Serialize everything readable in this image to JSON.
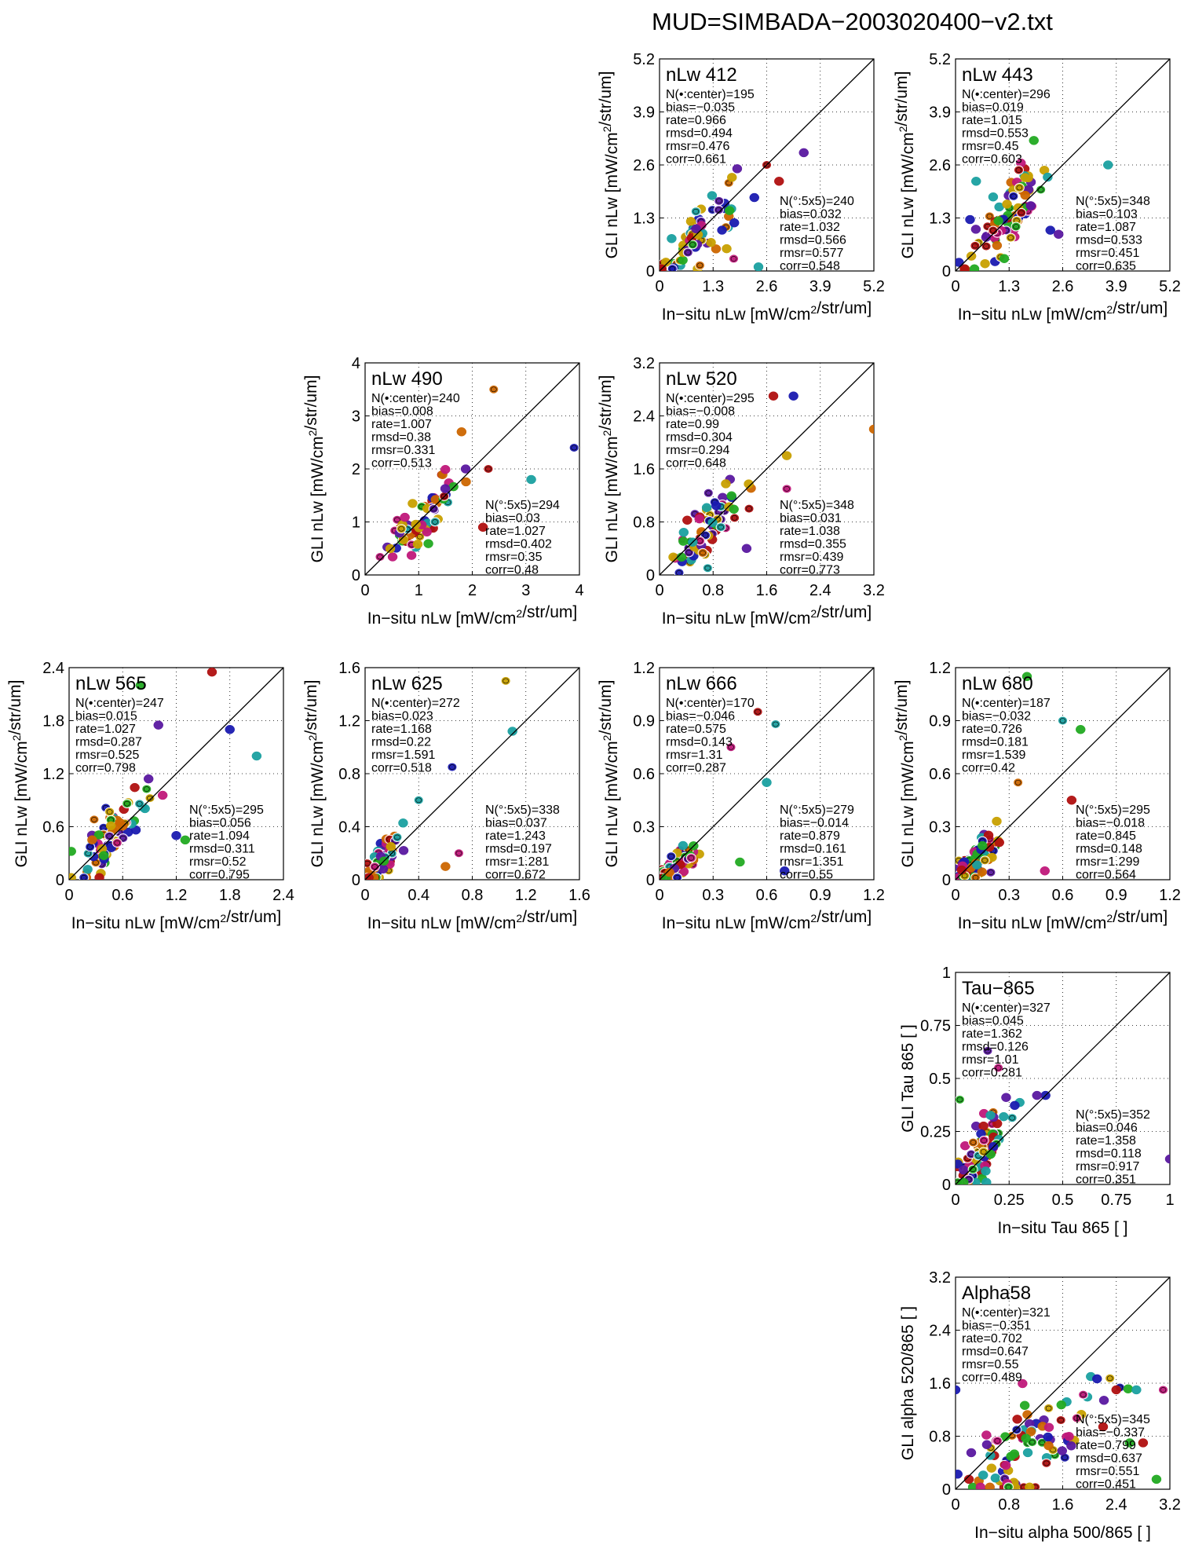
{
  "title": "MUD=SIMBADA−2003020400−v2.txt",
  "series_colors": [
    "#1a1ab0",
    "#1aa0a0",
    "#22aa22",
    "#c8a000",
    "#cc6600",
    "#b01010",
    "#c0187a",
    "#5a18a0"
  ],
  "chart_data": [
    {
      "type": "scatter",
      "panel_label": "nLw 412",
      "xlabel": "In−situ nLw [mW/cm²/str/um]",
      "ylabel": "GLI nLw [mW/cm²/str/um]",
      "xlim": [
        0,
        5.2
      ],
      "ylim": [
        0,
        5.2
      ],
      "xticks": [
        "0",
        "1.3",
        "2.6",
        "3.9",
        "5.2"
      ],
      "yticks": [
        "0",
        "1.3",
        "2.6",
        "3.9",
        "5.2"
      ],
      "grid": true,
      "identity_line": true,
      "stats_center": [
        "N(•:center)=195",
        "bias=−0.035",
        "rate=0.966",
        "rmsd=0.494",
        "rmsr=0.476",
        "corr=0.661"
      ],
      "stats_box": [
        "N(°:5x5)=240",
        "bias=0.032",
        "rate=1.032",
        "rmsd=0.566",
        "rmsr=0.577",
        "corr=0.548"
      ],
      "cluster": {
        "cx": 0.9,
        "cy": 0.9,
        "sx": 0.5,
        "sy": 0.5,
        "n": 70
      },
      "outliers": [
        [
          3.5,
          2.9
        ],
        [
          2.6,
          2.6
        ],
        [
          2.3,
          1.8
        ],
        [
          2.9,
          2.2
        ],
        [
          1.8,
          0.3
        ],
        [
          2.4,
          0.1
        ]
      ]
    },
    {
      "type": "scatter",
      "panel_label": "nLw 443",
      "xlabel": "In−situ nLw [mW/cm²/str/um]",
      "ylabel": "GLI nLw [mW/cm²/str/um]",
      "xlim": [
        0,
        5.2
      ],
      "ylim": [
        0,
        5.2
      ],
      "xticks": [
        "0",
        "1.3",
        "2.6",
        "3.9",
        "5.2"
      ],
      "yticks": [
        "0",
        "1.3",
        "2.6",
        "3.9",
        "5.2"
      ],
      "grid": true,
      "identity_line": true,
      "stats_center": [
        "N(•:center)=296",
        "bias=0.019",
        "rate=1.015",
        "rmsd=0.553",
        "rmsr=0.45",
        "corr=0.603"
      ],
      "stats_box": [
        "N(°:5x5)=348",
        "bias=0.103",
        "rate=1.087",
        "rmsd=0.533",
        "rmsr=0.451",
        "corr=0.635"
      ],
      "cluster": {
        "cx": 1.3,
        "cy": 1.4,
        "sx": 0.5,
        "sy": 0.5,
        "n": 80
      },
      "outliers": [
        [
          3.7,
          2.6
        ],
        [
          2.3,
          1.0
        ],
        [
          2.5,
          0.9
        ],
        [
          1.9,
          3.2
        ],
        [
          0.5,
          2.2
        ]
      ]
    },
    {
      "type": "scatter",
      "panel_label": "nLw 490",
      "xlabel": "In−situ nLw [mW/cm²/str/um]",
      "ylabel": "GLI nLw [mW/cm²/str/um]",
      "xlim": [
        0,
        4
      ],
      "ylim": [
        0,
        4
      ],
      "xticks": [
        "0",
        "1",
        "2",
        "3",
        "4"
      ],
      "yticks": [
        "0",
        "1",
        "2",
        "3",
        "4"
      ],
      "grid": true,
      "identity_line": true,
      "stats_center": [
        "N(•:center)=240",
        "bias=0.008",
        "rate=1.007",
        "rmsd=0.38",
        "rmsr=0.331",
        "corr=0.513"
      ],
      "stats_box": [
        "N(°:5x5)=294",
        "bias=0.03",
        "rate=1.027",
        "rmsd=0.402",
        "rmsr=0.35",
        "corr=0.48"
      ],
      "cluster": {
        "cx": 1.1,
        "cy": 1.1,
        "sx": 0.35,
        "sy": 0.3,
        "n": 75
      },
      "outliers": [
        [
          2.4,
          3.5
        ],
        [
          3.9,
          2.4
        ],
        [
          3.1,
          1.8
        ],
        [
          2.3,
          2.0
        ],
        [
          1.8,
          2.7
        ],
        [
          2.2,
          0.9
        ]
      ]
    },
    {
      "type": "scatter",
      "panel_label": "nLw 520",
      "xlabel": "In−situ nLw [mW/cm²/str/um]",
      "ylabel": "GLI nLw [mW/cm²/str/um]",
      "xlim": [
        0,
        3.2
      ],
      "ylim": [
        0,
        3.2
      ],
      "xticks": [
        "0",
        "0.8",
        "1.6",
        "2.4",
        "3.2"
      ],
      "yticks": [
        "0",
        "0.8",
        "1.6",
        "2.4",
        "3.2"
      ],
      "grid": true,
      "identity_line": true,
      "stats_center": [
        "N(•:center)=295",
        "bias=−0.008",
        "rate=0.99",
        "rmsd=0.304",
        "rmsr=0.294",
        "corr=0.648"
      ],
      "stats_box": [
        "N(°:5x5)=348",
        "bias=0.031",
        "rate=1.038",
        "rmsd=0.355",
        "rmsr=0.439",
        "corr=0.773"
      ],
      "cluster": {
        "cx": 0.75,
        "cy": 0.75,
        "sx": 0.25,
        "sy": 0.3,
        "n": 75
      },
      "outliers": [
        [
          3.2,
          2.2
        ],
        [
          1.7,
          2.7
        ],
        [
          2.0,
          2.7
        ],
        [
          1.9,
          1.8
        ],
        [
          1.9,
          1.3
        ],
        [
          1.3,
          0.4
        ]
      ]
    },
    {
      "type": "scatter",
      "panel_label": "nLw 565",
      "xlabel": "In−situ nLw [mW/cm²/str/um]",
      "ylabel": "GLI nLw [mW/cm²/str/um]",
      "xlim": [
        0,
        2.4
      ],
      "ylim": [
        0,
        2.4
      ],
      "xticks": [
        "0",
        "0.6",
        "1.2",
        "1.8",
        "2.4"
      ],
      "yticks": [
        "0",
        "0.6",
        "1.2",
        "1.8",
        "2.4"
      ],
      "grid": true,
      "identity_line": true,
      "stats_center": [
        "N(•:center)=247",
        "bias=0.015",
        "rate=1.027",
        "rmsd=0.287",
        "rmsr=0.525",
        "corr=0.798"
      ],
      "stats_box": [
        "N(°:5x5)=295",
        "bias=0.056",
        "rate=1.094",
        "rmsd=0.311",
        "rmsr=0.52",
        "corr=0.795"
      ],
      "cluster": {
        "cx": 0.45,
        "cy": 0.5,
        "sx": 0.22,
        "sy": 0.22,
        "n": 75
      },
      "outliers": [
        [
          1.6,
          2.35
        ],
        [
          0.8,
          2.2
        ],
        [
          1.0,
          1.75
        ],
        [
          2.1,
          1.4
        ],
        [
          1.8,
          1.7
        ],
        [
          1.3,
          0.45
        ],
        [
          1.2,
          0.5
        ]
      ]
    },
    {
      "type": "scatter",
      "panel_label": "nLw 625",
      "xlabel": "In−situ nLw [mW/cm²/str/um]",
      "ylabel": "GLI nLw [mW/cm²/str/um]",
      "xlim": [
        0,
        1.6
      ],
      "ylim": [
        0,
        1.6
      ],
      "xticks": [
        "0",
        "0.4",
        "0.8",
        "1.2",
        "1.6"
      ],
      "yticks": [
        "0",
        "0.4",
        "0.8",
        "1.2",
        "1.6"
      ],
      "grid": true,
      "identity_line": true,
      "stats_center": [
        "N(•:center)=272",
        "bias=0.023",
        "rate=1.168",
        "rmsd=0.22",
        "rmsr=1.591",
        "corr=0.518"
      ],
      "stats_box": [
        "N(°:5x5)=338",
        "bias=0.037",
        "rate=1.243",
        "rmsd=0.197",
        "rmsr=1.281",
        "corr=0.672"
      ],
      "cluster": {
        "cx": 0.1,
        "cy": 0.12,
        "sx": 0.08,
        "sy": 0.1,
        "n": 85
      },
      "outliers": [
        [
          1.05,
          1.5
        ],
        [
          1.1,
          1.12
        ],
        [
          0.65,
          0.85
        ],
        [
          0.4,
          0.6
        ],
        [
          0.6,
          0.1
        ],
        [
          0.7,
          0.2
        ]
      ]
    },
    {
      "type": "scatter",
      "panel_label": "nLw 666",
      "xlabel": "In−situ nLw [mW/cm²/str/um]",
      "ylabel": "GLI nLw [mW/cm²/str/um]",
      "xlim": [
        0,
        1.2
      ],
      "ylim": [
        0,
        1.2
      ],
      "xticks": [
        "0",
        "0.3",
        "0.6",
        "0.9",
        "1.2"
      ],
      "yticks": [
        "0",
        "0.3",
        "0.6",
        "0.9",
        "1.2"
      ],
      "grid": true,
      "identity_line": true,
      "stats_center": [
        "N(•:center)=170",
        "bias=−0.046",
        "rate=0.575",
        "rmsd=0.143",
        "rmsr=1.31",
        "corr=0.287"
      ],
      "stats_box": [
        "N(°:5x5)=279",
        "bias=−0.014",
        "rate=0.879",
        "rmsd=0.161",
        "rmsr=1.351",
        "corr=0.55"
      ],
      "cluster": {
        "cx": 0.1,
        "cy": 0.08,
        "sx": 0.07,
        "sy": 0.06,
        "n": 80
      },
      "outliers": [
        [
          0.55,
          0.95
        ],
        [
          0.65,
          0.88
        ],
        [
          0.6,
          0.55
        ],
        [
          0.4,
          0.75
        ],
        [
          0.7,
          0.05
        ],
        [
          0.45,
          0.1
        ]
      ]
    },
    {
      "type": "scatter",
      "panel_label": "nLw 680",
      "xlabel": "In−situ nLw [mW/cm²/str/um]",
      "ylabel": "GLI nLw [mW/cm²/str/um]",
      "xlim": [
        0,
        1.2
      ],
      "ylim": [
        0,
        1.2
      ],
      "xticks": [
        "0",
        "0.3",
        "0.6",
        "0.9",
        "1.2"
      ],
      "yticks": [
        "0",
        "0.3",
        "0.6",
        "0.9",
        "1.2"
      ],
      "grid": true,
      "identity_line": true,
      "stats_center": [
        "N(•:center)=187",
        "bias=−0.032",
        "rate=0.726",
        "rmsd=0.181",
        "rmsr=1.539",
        "corr=0.42"
      ],
      "stats_box": [
        "N(°:5x5)=295",
        "bias=−0.018",
        "rate=0.845",
        "rmsd=0.148",
        "rmsr=1.299",
        "corr=0.564"
      ],
      "cluster": {
        "cx": 0.12,
        "cy": 0.1,
        "sx": 0.07,
        "sy": 0.07,
        "n": 80
      },
      "outliers": [
        [
          0.4,
          1.15
        ],
        [
          0.6,
          0.9
        ],
        [
          0.7,
          0.85
        ],
        [
          0.35,
          0.55
        ],
        [
          0.65,
          0.45
        ],
        [
          0.5,
          0.05
        ]
      ]
    },
    {
      "type": "scatter",
      "panel_label": "Tau−865",
      "xlabel": "In−situ Tau 865 [ ]",
      "ylabel": "GLI Tau 865 [ ]",
      "xlim": [
        0,
        1
      ],
      "ylim": [
        0,
        1
      ],
      "xticks": [
        "0",
        "0.25",
        "0.5",
        "0.75",
        "1"
      ],
      "yticks": [
        "0",
        "0.25",
        "0.5",
        "0.75",
        "1"
      ],
      "grid": true,
      "identity_line": true,
      "stats_center": [
        "N(•:center)=327",
        "bias=0.045",
        "rate=1.362",
        "rmsd=0.126",
        "rmsr=1.01",
        "corr=0.281"
      ],
      "stats_box": [
        "N(°:5x5)=352",
        "bias=0.046",
        "rate=1.358",
        "rmsd=0.118",
        "rmsr=0.917",
        "corr=0.351"
      ],
      "cluster": {
        "cx": 0.12,
        "cy": 0.15,
        "sx": 0.07,
        "sy": 0.09,
        "n": 85
      },
      "outliers": [
        [
          0.15,
          0.63
        ],
        [
          0.2,
          0.55
        ],
        [
          0.42,
          0.42
        ],
        [
          0.38,
          0.42
        ],
        [
          1.0,
          0.12
        ],
        [
          0.02,
          0.4
        ]
      ]
    },
    {
      "type": "scatter",
      "panel_label": "Alpha58",
      "xlabel": "In−situ alpha 500/865 [ ]",
      "ylabel": "GLI alpha 520/865 [ ]",
      "xlim": [
        0,
        3.2
      ],
      "ylim": [
        0,
        3.2
      ],
      "xticks": [
        "0",
        "0.8",
        "1.6",
        "2.4",
        "3.2"
      ],
      "yticks": [
        "0",
        "0.8",
        "1.6",
        "2.4",
        "3.2"
      ],
      "grid": true,
      "identity_line": true,
      "stats_center": [
        "N(•:center)=321",
        "bias=−0.351",
        "rate=0.702",
        "rmsd=0.647",
        "rmsr=0.55",
        "corr=0.489"
      ],
      "stats_box": [
        "N(°:5x5)=345",
        "bias=−0.337",
        "rate=0.799",
        "rmsd=0.637",
        "rmsr=0.551",
        "corr=0.451"
      ],
      "cluster": {
        "cx": 1.2,
        "cy": 0.7,
        "sx": 0.5,
        "sy": 0.4,
        "n": 90
      },
      "outliers": [
        [
          0.0,
          1.5
        ],
        [
          2.4,
          1.5
        ],
        [
          2.7,
          1.5
        ],
        [
          3.1,
          1.5
        ],
        [
          2.8,
          0.7
        ],
        [
          2.6,
          0.7
        ],
        [
          0.2,
          0.15
        ],
        [
          3.0,
          0.15
        ]
      ]
    }
  ]
}
